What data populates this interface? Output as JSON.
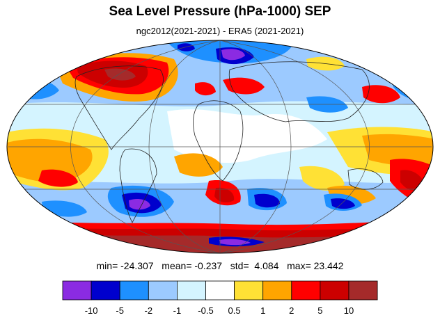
{
  "title": "Sea Level Pressure (hPa-1000) SEP",
  "subtitle": "ngc2012(2021-2021) - ERA5 (2021-2021)",
  "stats": {
    "min_label": "min=",
    "min": "-24.307",
    "mean_label": "mean=",
    "mean": "-0.237",
    "std_label": "std=",
    "std": "4.084",
    "max_label": "max=",
    "max": "23.442"
  },
  "colorbar": {
    "colors": [
      "#8b2be2",
      "#0000cd",
      "#1e90ff",
      "#9ccaff",
      "#d4f4ff",
      "#ffffff",
      "#ffe135",
      "#ffa500",
      "#ff0000",
      "#cc0000",
      "#a52a2a"
    ],
    "labels": [
      "-10",
      "-5",
      "-2",
      "-1",
      "-0.5",
      "0.5",
      "1",
      "2",
      "5",
      "10"
    ]
  }
}
